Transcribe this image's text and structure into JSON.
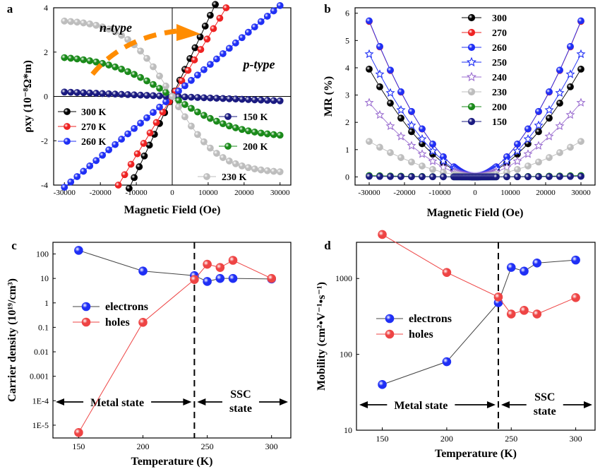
{
  "chart_data": [
    {
      "panel": "a",
      "type": "scatter",
      "xlabel": "Magnetic Field (Oe)",
      "ylabel": "ρxy (10⁻⁸Ω*m)",
      "xlim": [
        -33000,
        33000
      ],
      "ylim": [
        -4,
        4
      ],
      "xticks": [
        -30000,
        -20000,
        -10000,
        0,
        10000,
        20000,
        30000
      ],
      "yticks": [
        -4,
        -2,
        0,
        2,
        4
      ],
      "annotations": [
        "n-type",
        "p-type"
      ],
      "series": [
        {
          "name": "300 K",
          "color": "#000000",
          "marker": "circle",
          "legend_pos": "left",
          "x": [
            -12000,
            12000
          ],
          "y": [
            -4.15,
            4.15
          ]
        },
        {
          "name": "270 K",
          "color": "#ee2222",
          "marker": "circle",
          "legend_pos": "left",
          "x": [
            -15000,
            15000
          ],
          "y": [
            -4.0,
            4.0
          ]
        },
        {
          "name": "260 K",
          "color": "#1f2ff5",
          "marker": "circle",
          "legend_pos": "left",
          "x": [
            -30000,
            30000
          ],
          "y": [
            -4.1,
            4.1
          ]
        },
        {
          "name": "150 K",
          "color": "#1a1a80",
          "marker": "circle",
          "legend_pos": "right",
          "x": [
            -30000,
            30000
          ],
          "y": [
            0.2,
            -0.2
          ]
        },
        {
          "name": "200 K",
          "color": "#1a8a1a",
          "marker": "circle",
          "legend_pos": "right",
          "x": [
            -30000,
            30000
          ],
          "y": [
            1.75,
            -1.75
          ]
        },
        {
          "name": "230 K",
          "color": "#bdbdbd",
          "marker": "circle",
          "legend_pos": "right",
          "x": [
            -30000,
            30000
          ],
          "y": [
            3.4,
            -3.4
          ]
        }
      ]
    },
    {
      "panel": "b",
      "type": "scatter",
      "xlabel": "Magnetic Field (Oe)",
      "ylabel": "MR (%)",
      "xlim": [
        -34000,
        34000
      ],
      "ylim": [
        -0.3,
        6.2
      ],
      "xticks": [
        -30000,
        -20000,
        -10000,
        0,
        10000,
        20000,
        30000
      ],
      "yticks": [
        0,
        1,
        2,
        3,
        4,
        5,
        6
      ],
      "legend": "top-center",
      "series": [
        {
          "name": "300",
          "color": "#000000",
          "marker": "circle",
          "max_mr": 3.95
        },
        {
          "name": "270",
          "color": "#ee2222",
          "marker": "circle",
          "max_mr": 5.7
        },
        {
          "name": "260",
          "color": "#1f2ff5",
          "marker": "circle",
          "max_mr": 5.72
        },
        {
          "name": "250",
          "color": "#1f2ff5",
          "marker": "star",
          "max_mr": 4.5
        },
        {
          "name": "240",
          "color": "#9b6ed0",
          "marker": "star",
          "max_mr": 2.72
        },
        {
          "name": "230",
          "color": "#bdbdbd",
          "marker": "circle",
          "max_mr": 1.3
        },
        {
          "name": "200",
          "color": "#1a8a1a",
          "marker": "circle",
          "max_mr": 0.05
        },
        {
          "name": "150",
          "color": "#1a1a80",
          "marker": "circle",
          "max_mr": 0.02
        }
      ]
    },
    {
      "panel": "c",
      "type": "line",
      "xlabel": "Temperature (K)",
      "ylabel": "Carrier density (10¹⁹/cm³)",
      "yscale": "log",
      "xlim": [
        130,
        315
      ],
      "ylim": [
        3e-06,
        300
      ],
      "xticks": [
        150,
        200,
        250,
        300
      ],
      "yticks": [
        1e-05,
        0.0001,
        0.001,
        0.01,
        0.1,
        1,
        10,
        100
      ],
      "ytick_labels": [
        "1E-5",
        "1E-4",
        "0.001",
        "0.01",
        "0.1",
        "1",
        "10",
        "100"
      ],
      "divider_x": 240,
      "regions": [
        "Metal state",
        "SSC state"
      ],
      "legend": "left",
      "series": [
        {
          "name": "electrons",
          "color": "#1f2ff5",
          "line": "#444444",
          "x": [
            150,
            200,
            240,
            250,
            260,
            270,
            300
          ],
          "y": [
            140,
            20,
            13,
            7.5,
            10,
            10,
            9.5
          ]
        },
        {
          "name": "holes",
          "color": "#ee4444",
          "line": "#ee4444",
          "x": [
            150,
            200,
            240,
            250,
            260,
            270,
            300
          ],
          "y": [
            5e-06,
            0.16,
            9,
            38,
            28,
            55,
            10
          ]
        }
      ]
    },
    {
      "panel": "d",
      "type": "line",
      "xlabel": "Temperature (K)",
      "ylabel": "Mobility (cm²•V⁻¹•s⁻¹)",
      "yscale": "log",
      "xlim": [
        130,
        315
      ],
      "ylim": [
        10,
        3000
      ],
      "xticks": [
        150,
        200,
        250,
        300
      ],
      "yticks": [
        10,
        100,
        1000
      ],
      "divider_x": 240,
      "regions": [
        "Metal state",
        "SSC state"
      ],
      "legend": "left",
      "series": [
        {
          "name": "electrons",
          "color": "#1f2ff5",
          "line": "#444444",
          "x": [
            150,
            200,
            240,
            250,
            260,
            270,
            300
          ],
          "y": [
            40,
            80,
            480,
            1400,
            1250,
            1600,
            1750
          ]
        },
        {
          "name": "holes",
          "color": "#ee4444",
          "line": "#ee4444",
          "x": [
            150,
            200,
            240,
            250,
            260,
            270,
            300
          ],
          "y": [
            3800,
            1200,
            570,
            340,
            380,
            340,
            560
          ]
        }
      ]
    }
  ]
}
